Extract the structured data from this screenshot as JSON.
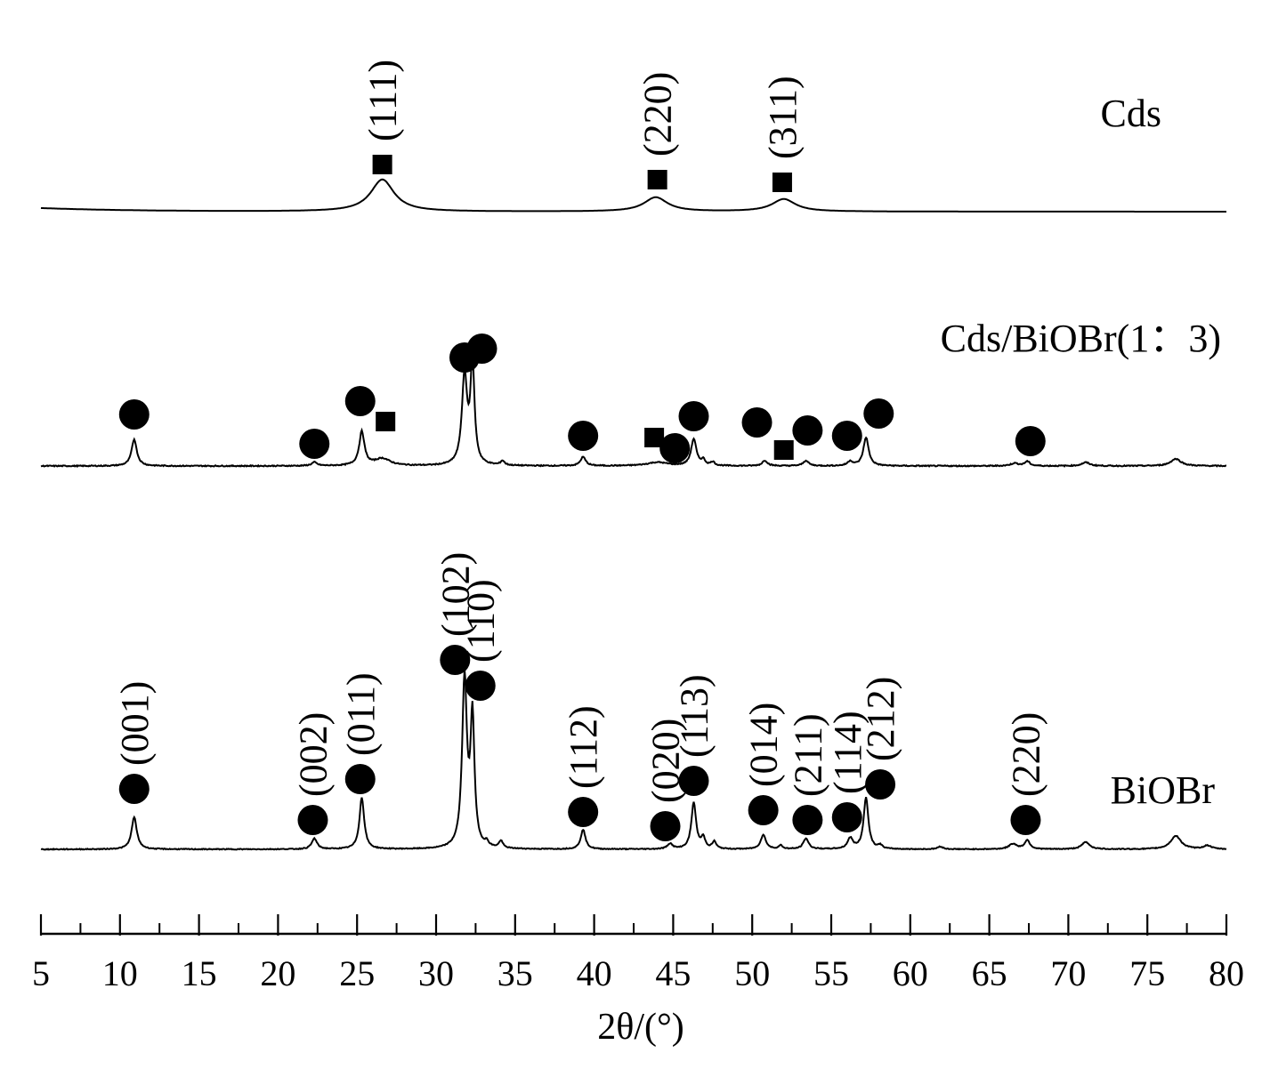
{
  "chart_data": {
    "type": "line",
    "xlabel": "2θ/(°)",
    "xlim": [
      5,
      80
    ],
    "xticks": [
      "5",
      "10",
      "15",
      "20",
      "25",
      "30",
      "35",
      "40",
      "45",
      "50",
      "55",
      "60",
      "65",
      "70",
      "75",
      "80"
    ],
    "grid": false,
    "y_axis_shown": false,
    "series": [
      {
        "name": "Cds",
        "peaks": [
          {
            "x": 26.6,
            "h": 36,
            "w": 0.9
          },
          {
            "x": 43.9,
            "h": 16,
            "w": 0.9
          },
          {
            "x": 52.0,
            "h": 14,
            "w": 0.9
          }
        ],
        "markers": [
          {
            "shape": "square",
            "x": 26.6,
            "label": "(111)"
          },
          {
            "shape": "square",
            "x": 44.0,
            "label": "(220)"
          },
          {
            "shape": "square",
            "x": 51.9,
            "label": "(311)"
          }
        ]
      },
      {
        "name": "Cds/BiOBr(1：3)",
        "peaks": [
          {
            "x": 10.9,
            "h": 30,
            "w": 0.2
          },
          {
            "x": 22.3,
            "h": 4,
            "w": 0.2
          },
          {
            "x": 25.3,
            "h": 38,
            "w": 0.2
          },
          {
            "x": 26.6,
            "h": 8,
            "w": 0.6
          },
          {
            "x": 31.8,
            "h": 100,
            "w": 0.2
          },
          {
            "x": 32.3,
            "h": 115,
            "w": 0.15
          },
          {
            "x": 34.2,
            "h": 5,
            "w": 0.15
          },
          {
            "x": 39.3,
            "h": 10,
            "w": 0.2
          },
          {
            "x": 44.0,
            "h": 4,
            "w": 0.8
          },
          {
            "x": 46.3,
            "h": 30,
            "w": 0.2
          },
          {
            "x": 46.9,
            "h": 6,
            "w": 0.15
          },
          {
            "x": 47.5,
            "h": 4,
            "w": 0.15
          },
          {
            "x": 50.8,
            "h": 6,
            "w": 0.2
          },
          {
            "x": 53.4,
            "h": 6,
            "w": 0.2
          },
          {
            "x": 56.2,
            "h": 5,
            "w": 0.2
          },
          {
            "x": 57.2,
            "h": 32,
            "w": 0.2
          },
          {
            "x": 66.6,
            "h": 3,
            "w": 0.3
          },
          {
            "x": 67.4,
            "h": 5,
            "w": 0.2
          },
          {
            "x": 71.1,
            "h": 4,
            "w": 0.3
          },
          {
            "x": 76.8,
            "h": 8,
            "w": 0.4
          }
        ],
        "markers": [
          {
            "shape": "circle",
            "x": 10.9
          },
          {
            "shape": "circle",
            "x": 22.3
          },
          {
            "shape": "circle",
            "x": 25.2
          },
          {
            "shape": "circle",
            "x": 31.8
          },
          {
            "shape": "circle",
            "x": 32.9
          },
          {
            "shape": "circle",
            "x": 39.3
          },
          {
            "shape": "circle",
            "x": 45.1
          },
          {
            "shape": "circle",
            "x": 46.3
          },
          {
            "shape": "circle",
            "x": 50.3
          },
          {
            "shape": "circle",
            "x": 53.5
          },
          {
            "shape": "circle",
            "x": 56.0
          },
          {
            "shape": "circle",
            "x": 58.0
          },
          {
            "shape": "circle",
            "x": 67.6
          },
          {
            "shape": "square",
            "x": 26.8
          },
          {
            "shape": "square",
            "x": 43.8
          },
          {
            "shape": "square",
            "x": 52.0
          }
        ]
      },
      {
        "name": "BiOBr",
        "peaks": [
          {
            "x": 10.9,
            "h": 36,
            "w": 0.2
          },
          {
            "x": 22.3,
            "h": 12,
            "w": 0.2
          },
          {
            "x": 25.3,
            "h": 58,
            "w": 0.18
          },
          {
            "x": 31.8,
            "h": 190,
            "w": 0.18
          },
          {
            "x": 32.3,
            "h": 145,
            "w": 0.15
          },
          {
            "x": 33.2,
            "h": 5,
            "w": 0.15
          },
          {
            "x": 34.1,
            "h": 8,
            "w": 0.15
          },
          {
            "x": 39.3,
            "h": 22,
            "w": 0.18
          },
          {
            "x": 44.8,
            "h": 6,
            "w": 0.2
          },
          {
            "x": 46.3,
            "h": 52,
            "w": 0.18
          },
          {
            "x": 46.9,
            "h": 12,
            "w": 0.15
          },
          {
            "x": 47.6,
            "h": 8,
            "w": 0.15
          },
          {
            "x": 50.7,
            "h": 16,
            "w": 0.2
          },
          {
            "x": 51.8,
            "h": 4,
            "w": 0.15
          },
          {
            "x": 53.4,
            "h": 12,
            "w": 0.2
          },
          {
            "x": 56.2,
            "h": 12,
            "w": 0.2
          },
          {
            "x": 57.2,
            "h": 58,
            "w": 0.18
          },
          {
            "x": 58.1,
            "h": 4,
            "w": 0.15
          },
          {
            "x": 61.9,
            "h": 3,
            "w": 0.2
          },
          {
            "x": 66.5,
            "h": 6,
            "w": 0.3
          },
          {
            "x": 67.4,
            "h": 10,
            "w": 0.2
          },
          {
            "x": 71.1,
            "h": 8,
            "w": 0.3
          },
          {
            "x": 76.8,
            "h": 15,
            "w": 0.4
          },
          {
            "x": 78.8,
            "h": 4,
            "w": 0.3
          }
        ],
        "markers": [
          {
            "shape": "circle",
            "x": 10.9,
            "label": "(001)"
          },
          {
            "shape": "circle",
            "x": 22.2,
            "label": "(002)"
          },
          {
            "shape": "circle",
            "x": 25.2,
            "label": "(011)"
          },
          {
            "shape": "circle",
            "x": 31.2,
            "label": "(102)"
          },
          {
            "shape": "circle",
            "x": 32.8,
            "label": "(110)"
          },
          {
            "shape": "circle",
            "x": 39.3,
            "label": "(112)"
          },
          {
            "shape": "circle",
            "x": 44.5,
            "label": "(020)"
          },
          {
            "shape": "circle",
            "x": 46.3,
            "label": "(113)"
          },
          {
            "shape": "circle",
            "x": 50.7,
            "label": "(014)"
          },
          {
            "shape": "circle",
            "x": 53.5,
            "label": "(211)"
          },
          {
            "shape": "circle",
            "x": 56.0,
            "label": "(114)"
          },
          {
            "shape": "circle",
            "x": 58.1,
            "label": "(212)"
          },
          {
            "shape": "circle",
            "x": 67.3,
            "label": "(220)"
          }
        ]
      }
    ]
  }
}
